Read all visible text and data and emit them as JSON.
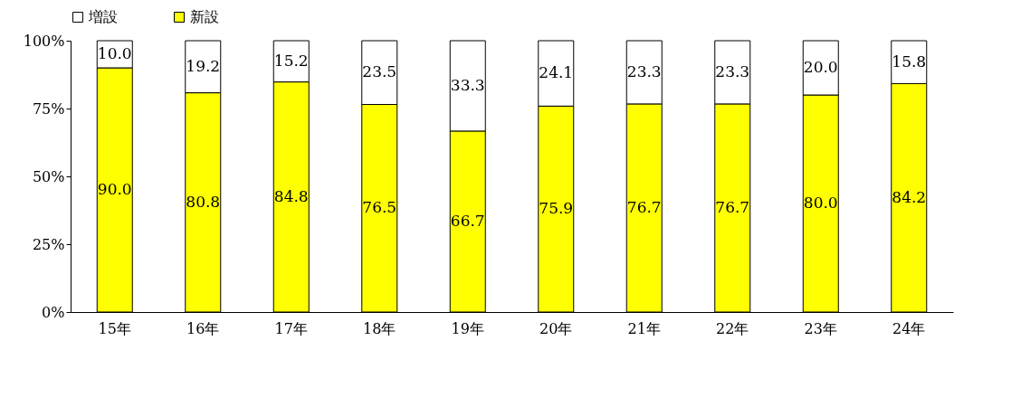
{
  "chart_data": {
    "type": "bar",
    "stacked": true,
    "categories": [
      "15年",
      "16年",
      "17年",
      "18年",
      "19年",
      "20年",
      "21年",
      "22年",
      "23年",
      "24年"
    ],
    "series": [
      {
        "name": "新設",
        "color": "#ffff00",
        "values": [
          90.0,
          80.8,
          84.8,
          76.5,
          66.7,
          75.9,
          76.7,
          76.7,
          80.0,
          84.2
        ],
        "value_labels": [
          "90.0",
          "80.8",
          "84.8",
          "76.5",
          "66.7",
          "75.9",
          "76.7",
          "76.7",
          "80.0",
          "84.2"
        ]
      },
      {
        "name": "増設",
        "color": "#ffffff",
        "values": [
          10.0,
          19.2,
          15.2,
          23.5,
          33.3,
          24.1,
          23.3,
          23.3,
          20.0,
          15.8
        ],
        "value_labels": [
          "10.0",
          "19.2",
          "15.2",
          "23.5",
          "33.3",
          "24.1",
          "23.3",
          "23.3",
          "20.0",
          "15.8"
        ]
      }
    ],
    "ylim": [
      0,
      100
    ],
    "yticks": [
      {
        "value": 0,
        "label": "0%"
      },
      {
        "value": 25,
        "label": "25%"
      },
      {
        "value": 50,
        "label": "50%"
      },
      {
        "value": 75,
        "label": "75%"
      },
      {
        "value": 100,
        "label": "100%"
      }
    ],
    "legend": "top",
    "grid": false
  }
}
